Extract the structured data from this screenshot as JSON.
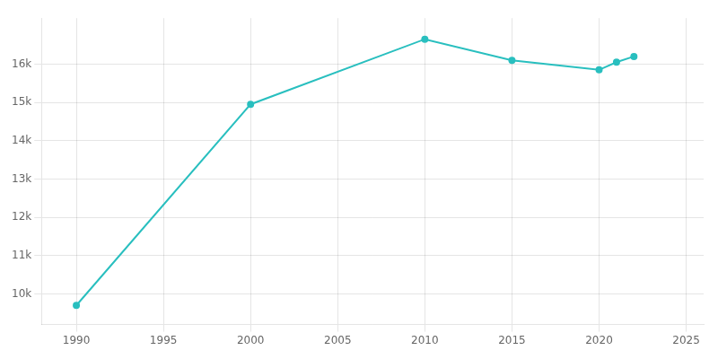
{
  "chart_data": {
    "type": "line",
    "x": [
      1990,
      2000,
      2010,
      2015,
      2020,
      2021,
      2022
    ],
    "values": [
      9700,
      14950,
      16650,
      16100,
      15850,
      16050,
      16200
    ],
    "color": "#29BFBF",
    "marker": "circle",
    "xlim": [
      1988,
      2026
    ],
    "ylim": [
      9200,
      17200
    ],
    "xticks": [
      1990,
      1995,
      2000,
      2005,
      2010,
      2015,
      2020,
      2025
    ],
    "yticks": [
      {
        "value": 10000,
        "label": "10k"
      },
      {
        "value": 11000,
        "label": "11k"
      },
      {
        "value": 12000,
        "label": "12k"
      },
      {
        "value": 13000,
        "label": "13k"
      },
      {
        "value": 14000,
        "label": "14k"
      },
      {
        "value": 15000,
        "label": "15k"
      },
      {
        "value": 16000,
        "label": "16k"
      }
    ],
    "grid": true
  }
}
